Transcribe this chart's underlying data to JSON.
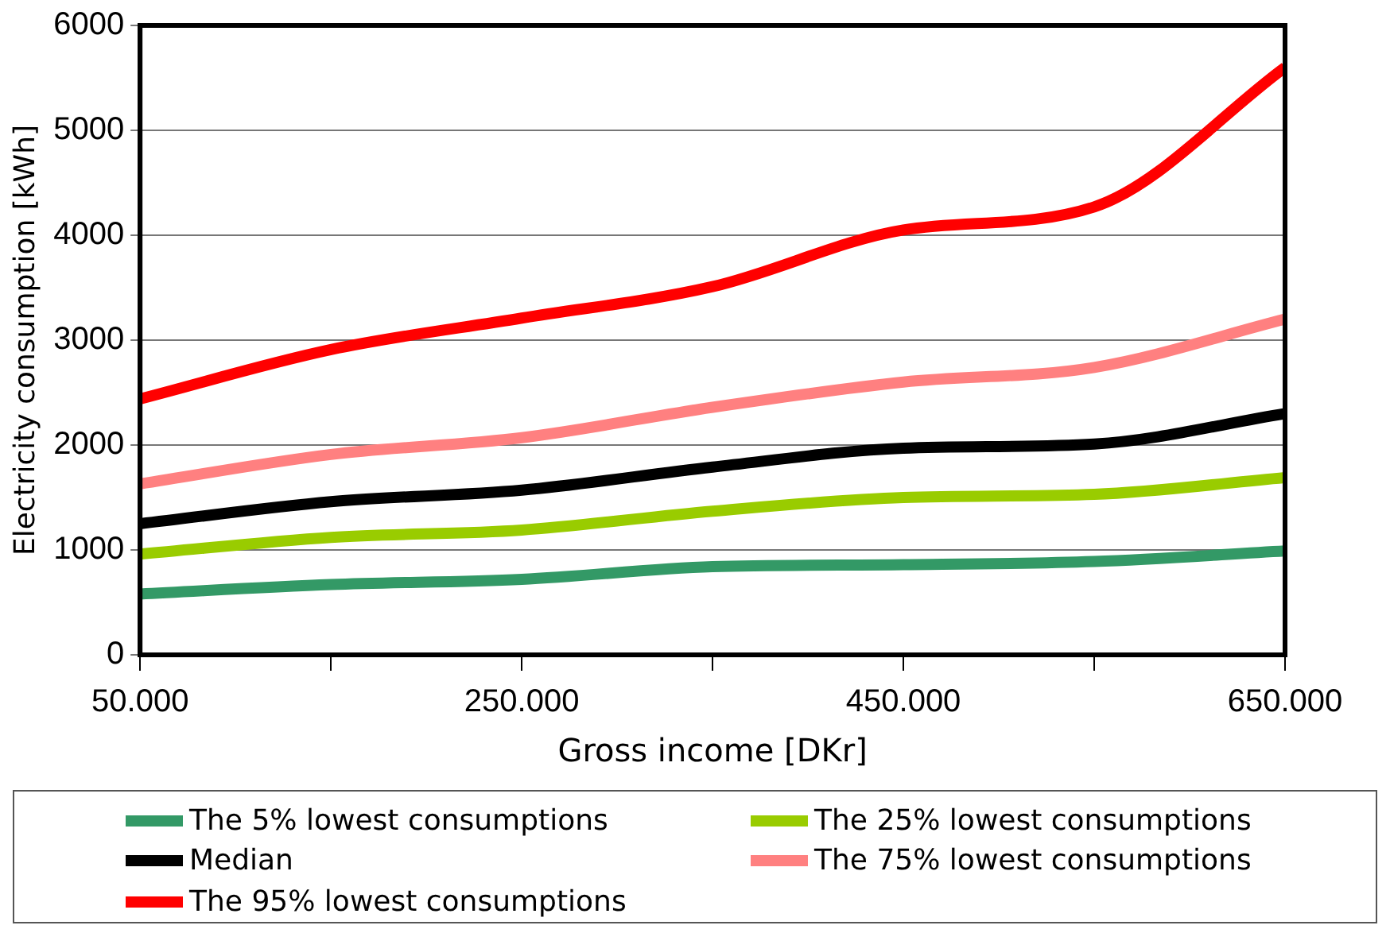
{
  "chart_data": {
    "type": "line",
    "xlabel": "Gross income [DKr]",
    "ylabel": "Electricity consumption [kWh]",
    "x": [
      50000,
      150000,
      250000,
      350000,
      450000,
      550000,
      650000
    ],
    "xlim": [
      50000,
      650000
    ],
    "xticks": [
      {
        "value": 50000,
        "label": "50.000"
      },
      {
        "value": 150000,
        "label": null
      },
      {
        "value": 250000,
        "label": "250.000"
      },
      {
        "value": 350000,
        "label": null
      },
      {
        "value": 450000,
        "label": "450.000"
      },
      {
        "value": 550000,
        "label": null
      },
      {
        "value": 650000,
        "label": "650.000"
      }
    ],
    "ylim": [
      0,
      6000
    ],
    "yticks": [
      0,
      1000,
      2000,
      3000,
      4000,
      5000,
      6000
    ],
    "grid": "y",
    "legend": "bottom",
    "marker": "none",
    "line_style": "solid",
    "series": [
      {
        "name": "The 5% lowest consumptions",
        "color": "#339966",
        "values": [
          580,
          670,
          720,
          840,
          860,
          890,
          990
        ]
      },
      {
        "name": "The 25% lowest consumptions",
        "color": "#99cc00",
        "values": [
          960,
          1120,
          1190,
          1370,
          1500,
          1530,
          1690
        ]
      },
      {
        "name": "Median",
        "color": "#000000",
        "values": [
          1250,
          1460,
          1570,
          1790,
          1970,
          2010,
          2300
        ]
      },
      {
        "name": "The 75% lowest consumptions",
        "color": "#ff8080",
        "values": [
          1630,
          1910,
          2070,
          2360,
          2600,
          2740,
          3200
        ]
      },
      {
        "name": "The 95% lowest consumptions",
        "color": "#ff0000",
        "values": [
          2440,
          2910,
          3210,
          3510,
          4050,
          4270,
          5600
        ]
      }
    ]
  }
}
